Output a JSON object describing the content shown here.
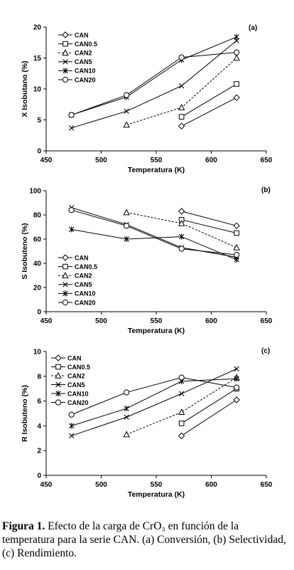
{
  "chart_data": [
    {
      "type": "line",
      "panel_label": "(a)",
      "xlabel": "Temperatura (K)",
      "ylabel": "X Isobutano (%)",
      "xlim": [
        450,
        650
      ],
      "ylim": [
        0,
        20
      ],
      "xticks": [
        450,
        500,
        550,
        600,
        650
      ],
      "yticks": [
        0,
        5,
        10,
        15,
        20
      ],
      "legend_position": "top-left",
      "series": [
        {
          "name": "CAN",
          "marker": "diamond",
          "x": [
            573,
            623
          ],
          "y": [
            4.0,
            8.6
          ]
        },
        {
          "name": "CAN0.5",
          "marker": "square",
          "x": [
            573,
            623
          ],
          "y": [
            5.5,
            10.8
          ]
        },
        {
          "name": "CAN2",
          "marker": "triangle",
          "x": [
            523,
            573,
            623
          ],
          "y": [
            4.2,
            7.0,
            15.0
          ]
        },
        {
          "name": "CAN5",
          "marker": "x",
          "x": [
            473,
            523,
            573,
            623
          ],
          "y": [
            3.7,
            6.4,
            10.5,
            17.8
          ]
        },
        {
          "name": "CAN10",
          "marker": "star",
          "x": [
            473,
            523,
            573,
            623
          ],
          "y": [
            5.8,
            8.7,
            14.7,
            18.4
          ]
        },
        {
          "name": "CAN20",
          "marker": "circle",
          "x": [
            473,
            523,
            573,
            623
          ],
          "y": [
            5.8,
            9.0,
            15.1,
            15.9
          ]
        }
      ]
    },
    {
      "type": "line",
      "panel_label": "(b)",
      "xlabel": "Temperatura (K)",
      "ylabel": "S Isobuteno (%)",
      "xlim": [
        450,
        650
      ],
      "ylim": [
        0,
        100
      ],
      "xticks": [
        450,
        500,
        550,
        600,
        650
      ],
      "yticks": [
        0,
        20,
        40,
        60,
        80,
        100
      ],
      "legend_position": "bottom-left",
      "series": [
        {
          "name": "CAN",
          "marker": "diamond",
          "x": [
            573,
            623
          ],
          "y": [
            83,
            71
          ]
        },
        {
          "name": "CAN0.5",
          "marker": "square",
          "x": [
            573,
            623
          ],
          "y": [
            76,
            65
          ]
        },
        {
          "name": "CAN2",
          "marker": "triangle",
          "x": [
            523,
            573,
            623
          ],
          "y": [
            82,
            73,
            53
          ]
        },
        {
          "name": "CAN5",
          "marker": "x",
          "x": [
            473,
            523,
            573,
            623
          ],
          "y": [
            86,
            72,
            53,
            45
          ]
        },
        {
          "name": "CAN10",
          "marker": "star",
          "x": [
            473,
            523,
            573,
            623
          ],
          "y": [
            68,
            60,
            62,
            43
          ]
        },
        {
          "name": "CAN20",
          "marker": "circle",
          "x": [
            473,
            523,
            573,
            623
          ],
          "y": [
            84,
            71,
            52,
            47
          ]
        }
      ]
    },
    {
      "type": "line",
      "panel_label": "(c)",
      "xlabel": "Temperatura (K)",
      "ylabel": "R Isobuteno (%)",
      "xlim": [
        450,
        650
      ],
      "ylim": [
        0,
        10
      ],
      "xticks": [
        450,
        500,
        550,
        600,
        650
      ],
      "yticks": [
        0,
        2,
        4,
        6,
        8,
        10
      ],
      "legend_position": "top-left",
      "series": [
        {
          "name": "CAN",
          "marker": "diamond",
          "x": [
            573,
            623
          ],
          "y": [
            3.2,
            6.1
          ]
        },
        {
          "name": "CAN0.5",
          "marker": "square",
          "x": [
            573,
            623
          ],
          "y": [
            4.2,
            7.0
          ]
        },
        {
          "name": "CAN2",
          "marker": "triangle",
          "x": [
            523,
            573,
            623
          ],
          "y": [
            3.3,
            5.1,
            7.9
          ]
        },
        {
          "name": "CAN5",
          "marker": "x",
          "x": [
            473,
            523,
            573,
            623
          ],
          "y": [
            3.2,
            4.7,
            6.6,
            8.6
          ]
        },
        {
          "name": "CAN10",
          "marker": "star",
          "x": [
            473,
            523,
            573,
            623
          ],
          "y": [
            4.0,
            5.4,
            7.6,
            7.8
          ]
        },
        {
          "name": "CAN20",
          "marker": "circle",
          "x": [
            473,
            523,
            573,
            623
          ],
          "y": [
            4.9,
            6.7,
            7.9,
            7.1
          ]
        }
      ]
    }
  ],
  "caption": {
    "label": "Figura 1.",
    "text": "Efecto de la carga de CrO₃ en función de la temperatura para la serie CAN. (a) Conversión, (b) Selectividad, (c) Rendimiento."
  }
}
